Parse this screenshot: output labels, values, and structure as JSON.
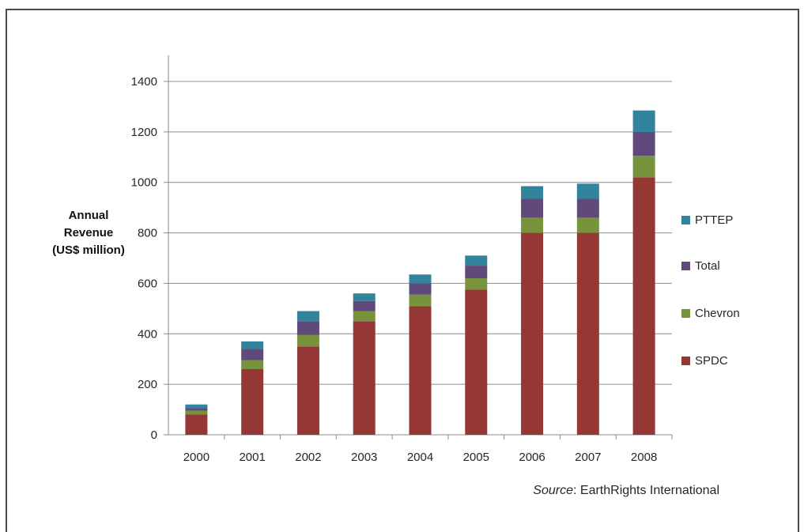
{
  "chart_data": {
    "type": "bar",
    "stacked": true,
    "categories": [
      "2000",
      "2001",
      "2002",
      "2003",
      "2004",
      "2005",
      "2006",
      "2007",
      "2008"
    ],
    "series": [
      {
        "name": "SPDC",
        "color": "#953735",
        "values": [
          80,
          260,
          350,
          450,
          510,
          575,
          800,
          800,
          1020
        ]
      },
      {
        "name": "Chevron",
        "color": "#77933c",
        "values": [
          15,
          35,
          45,
          40,
          45,
          45,
          60,
          60,
          85
        ]
      },
      {
        "name": "Total",
        "color": "#604a7b",
        "values": [
          10,
          45,
          55,
          40,
          45,
          50,
          75,
          75,
          95
        ]
      },
      {
        "name": "PTTEP",
        "color": "#31849b",
        "values": [
          15,
          30,
          40,
          30,
          35,
          40,
          50,
          60,
          85
        ]
      }
    ],
    "ylabel": "Annual Revenue (US$ million)",
    "ylabel_lines": [
      "Annual",
      "Revenue",
      "(US$ million)"
    ],
    "ylim": [
      0,
      1400
    ],
    "yticks": [
      0,
      200,
      400,
      600,
      800,
      1000,
      1200,
      1400
    ],
    "grid": true,
    "legend_position": "right",
    "legend_order": [
      "PTTEP",
      "Total",
      "Chevron",
      "SPDC"
    ]
  },
  "source": {
    "prefix": "Source",
    "text": ": EarthRights International"
  }
}
